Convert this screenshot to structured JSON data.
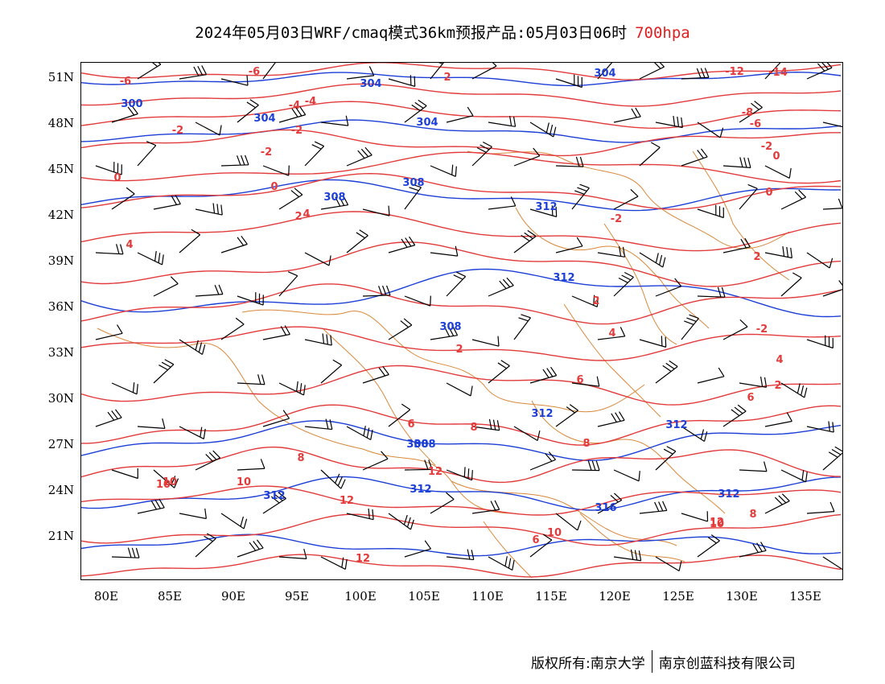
{
  "title": {
    "main": "2024年05月03日WRF/cmaq模式36km预报产品:05月03日06时",
    "level": "700hpa"
  },
  "colors": {
    "temperature": "#e23b3b",
    "height": "#1c3fd6",
    "border": "#d9883a",
    "wind": "#000000"
  },
  "lat_labels": [
    "51N",
    "48N",
    "45N",
    "42N",
    "39N",
    "36N",
    "33N",
    "30N",
    "27N",
    "24N",
    "21N"
  ],
  "lon_labels": [
    "80E",
    "85E",
    "90E",
    "95E",
    "100E",
    "105E",
    "110E",
    "115E",
    "120E",
    "125E",
    "130E",
    "135E"
  ],
  "temp_labels": [
    "-6",
    "-6",
    "-4",
    "-2",
    "-2",
    "0",
    "0",
    "2",
    "-4",
    "-2",
    "2",
    "-2",
    "2",
    "4",
    "4",
    "2",
    "4",
    "6",
    "6",
    "6",
    "8",
    "8",
    "8",
    "10",
    "10",
    "10",
    "12",
    "12",
    "10",
    "12",
    "8",
    "6",
    "10",
    "12",
    "-14",
    "-12",
    "-8",
    "-6",
    "-2",
    "0",
    "0",
    "2",
    "2",
    "-2",
    "4"
  ],
  "height_labels": [
    "300",
    "304",
    "304",
    "304",
    "304",
    "308",
    "308",
    "308",
    "308",
    "312",
    "312",
    "312",
    "308",
    "312",
    "312",
    "316",
    "312",
    "312"
  ],
  "footer": {
    "left": "版权所有:南京大学",
    "right": "南京创蓝科技有限公司"
  }
}
